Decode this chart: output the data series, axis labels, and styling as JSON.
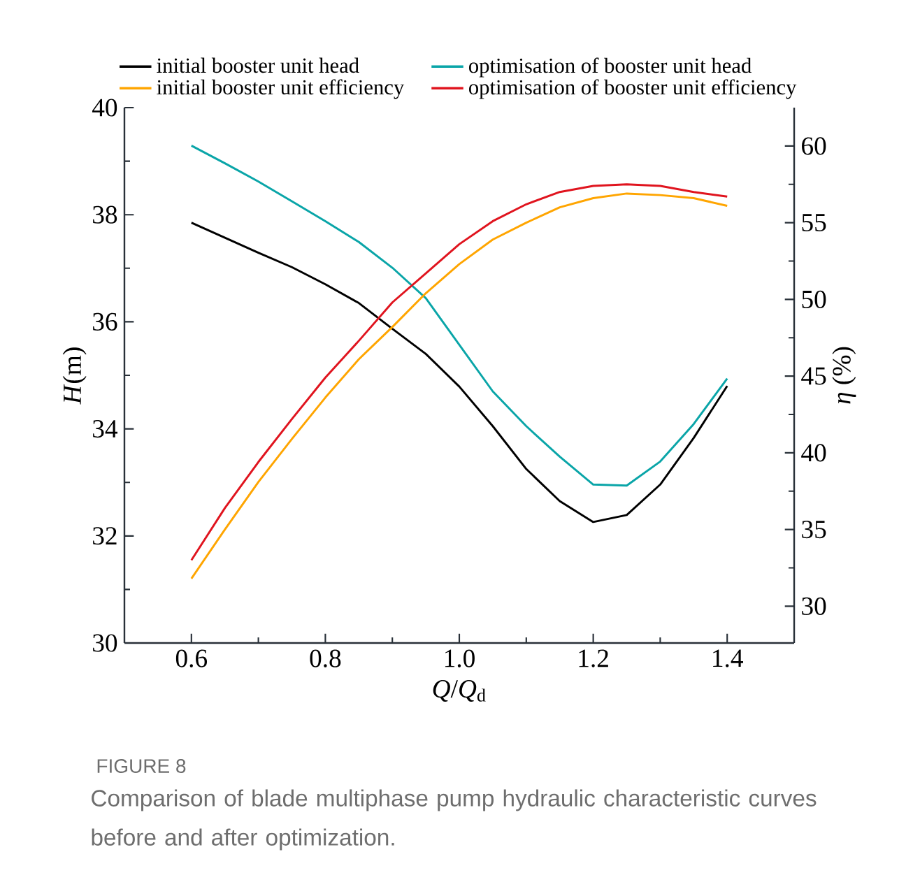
{
  "chart_data": {
    "type": "line",
    "xlabel": "*Q*/*Q*$_{d}$",
    "ylabel": "*H*(m)",
    "y2label": "*η* (%)",
    "x": [
      0.6,
      0.65,
      0.7,
      0.75,
      0.8,
      0.85,
      0.9,
      0.95,
      1.0,
      1.05,
      1.1,
      1.15,
      1.2,
      1.25,
      1.3,
      1.35,
      1.4
    ],
    "series": [
      {
        "name": "initial booster unit head",
        "color": "#000000",
        "values": [
          37.85,
          37.57,
          37.29,
          37.02,
          36.7,
          36.35,
          35.87,
          35.4,
          34.79,
          34.05,
          33.25,
          32.65,
          32.26,
          32.39,
          32.96,
          33.83,
          34.8
        ]
      },
      {
        "name": "optimisation of booster unit head",
        "color": "#0aa5a8",
        "values": [
          39.29,
          38.96,
          38.62,
          38.25,
          37.88,
          37.49,
          37.01,
          36.44,
          35.57,
          34.7,
          34.05,
          33.48,
          32.96,
          32.94,
          33.39,
          34.09,
          34.94
        ]
      },
      {
        "name": "initial booster unit efficiency",
        "color": "#ffa500",
        "axis": "y2",
        "values": [
          31.8,
          35.0,
          38.1,
          40.9,
          43.6,
          46.1,
          48.2,
          50.4,
          52.3,
          53.9,
          55.0,
          56.0,
          56.6,
          56.9,
          56.8,
          56.6,
          56.1
        ]
      },
      {
        "name": "optimisation of booster unit efficiency",
        "color": "#e0141e",
        "axis": "y2",
        "values": [
          33.0,
          36.4,
          39.4,
          42.2,
          44.9,
          47.3,
          49.8,
          51.7,
          53.6,
          55.1,
          56.2,
          57.0,
          57.4,
          57.5,
          57.4,
          57.0,
          56.7
        ]
      }
    ],
    "xlim": [
      0.5,
      1.5
    ],
    "xticks": [
      0.6,
      0.8,
      {
        "value": 1,
        "label": "1.0"
      },
      1.2,
      1.4
    ],
    "ylim": [
      30,
      40
    ],
    "yticks": [
      30,
      32,
      34,
      36,
      38,
      40
    ],
    "y2lim": [
      27.6,
      62.5
    ],
    "y2ticks": [
      30,
      35,
      40,
      45,
      50,
      55,
      60
    ],
    "legend": "top",
    "annotations": [
      "FIGURE 8",
      "Comparison of blade multiphase pump hydraulic characteristic curves before and after optimization."
    ]
  }
}
